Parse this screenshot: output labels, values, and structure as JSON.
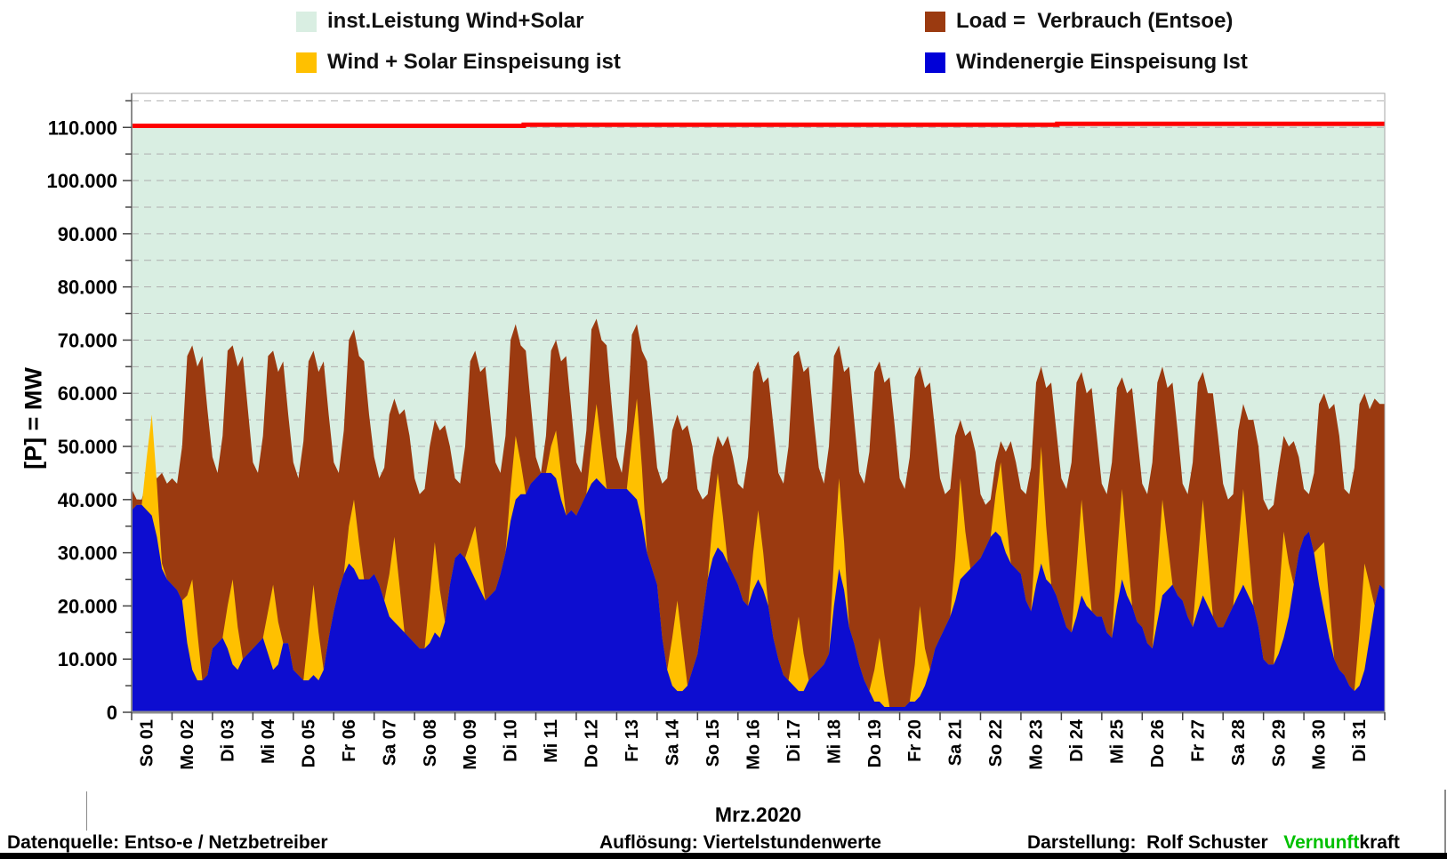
{
  "legend": {
    "items": [
      {
        "name": "capacity",
        "label": "inst.Leistung Wind+Solar",
        "color": "#d9eee2"
      },
      {
        "name": "load",
        "label": "Load =  Verbrauch (Entsoe)",
        "color": "#9b3a10"
      },
      {
        "name": "windsolar",
        "label": "Wind + Solar Einspeisung ist",
        "color": "#ffc000"
      },
      {
        "name": "wind",
        "label": "Windenergie Einspeisung Ist",
        "color": "#0000d8"
      }
    ]
  },
  "y_axis": {
    "title": "[P] = MW",
    "tick_labels": [
      "0",
      "10.000",
      "20.000",
      "30.000",
      "40.000",
      "50.000",
      "60.000",
      "70.000",
      "80.000",
      "90.000",
      "100.000",
      "110.000"
    ],
    "major_step_mw": 10000,
    "minor_step_mw": 5000
  },
  "x_axis": {
    "title": "Mrz.2020",
    "day_labels": [
      "So 01",
      "Mo 02",
      "Di 03",
      "Mi 04",
      "Do 05",
      "Fr 06",
      "Sa 07",
      "So 08",
      "Mo 09",
      "Di 10",
      "Mi 11",
      "Do 12",
      "Fr 13",
      "Sa 14",
      "So 15",
      "Mo 16",
      "Di 17",
      "Mi 18",
      "Do 19",
      "Fr 20",
      "Sa 21",
      "So 22",
      "Mo 23",
      "Di 24",
      "Mi 25",
      "Do 26",
      "Fr 27",
      "Sa 28",
      "So 29",
      "Mo 30",
      "Di 31"
    ]
  },
  "footer": {
    "left": "Datenquelle:  Entso-e  / Netzbetreiber",
    "center": "Auflösung: Viertelstundenwerte",
    "right_label": "Darstellung:  Rolf Schuster   ",
    "brand_green": "Vernunft",
    "brand_black": "kraft",
    "brand_green_color": "#00c000"
  },
  "chart_data": {
    "type": "area",
    "unit": "MW",
    "x_unit": "days of Mrz.2020, values sampled every 3 hours (original: quarter-hour)",
    "sample_hours_step": 3,
    "days": 31,
    "ylim": [
      0,
      116400
    ],
    "grid": "dashed horizontal every 5.000 MW",
    "legend_position": "top",
    "colors": {
      "capacity_fill": "#d9eee2",
      "capacity_line": "#fe0000",
      "load": "#9b3a10",
      "windsolar": "#ffc000",
      "wind": "#0d0dd0",
      "gridline": "#aeaeae",
      "axis": "#8c8c8c"
    },
    "capacity_steps_mw": [
      {
        "from_day": 0,
        "to_day": 9.7,
        "value": 110300
      },
      {
        "from_day": 9.7,
        "to_day": 22.9,
        "value": 110520
      },
      {
        "from_day": 22.9,
        "to_day": 31,
        "value": 110680
      }
    ],
    "series": [
      {
        "name": "Load =  Verbrauch (Entsoe)",
        "key": "load",
        "values_mw": [
          42000,
          40000,
          40000,
          44000,
          46000,
          44000,
          45000,
          43000,
          44000,
          43000,
          50000,
          67000,
          69000,
          65000,
          67000,
          57000,
          48000,
          45000,
          52000,
          68000,
          69000,
          65000,
          67000,
          57000,
          47000,
          45000,
          52000,
          67000,
          68000,
          64000,
          66000,
          56000,
          47000,
          44000,
          51000,
          66000,
          68000,
          64000,
          66000,
          56000,
          47000,
          45000,
          53000,
          70000,
          72000,
          67000,
          66000,
          56000,
          48000,
          44000,
          46000,
          56000,
          59000,
          56000,
          57000,
          52000,
          44000,
          41000,
          42000,
          50000,
          55000,
          53000,
          54000,
          50000,
          44000,
          43000,
          50000,
          66000,
          68000,
          64000,
          65000,
          56000,
          47000,
          45000,
          52000,
          70000,
          73000,
          69000,
          68000,
          58000,
          48000,
          45000,
          52000,
          68000,
          70000,
          66000,
          67000,
          57000,
          47000,
          45000,
          53000,
          72000,
          74000,
          70000,
          69000,
          58000,
          48000,
          45000,
          53000,
          71000,
          73000,
          68000,
          66000,
          56000,
          46000,
          43000,
          44000,
          53000,
          56000,
          53000,
          54000,
          50000,
          42000,
          40000,
          41000,
          48000,
          52000,
          50000,
          52000,
          48000,
          43000,
          42000,
          48000,
          64000,
          66000,
          62000,
          63000,
          54000,
          45000,
          43000,
          50000,
          67000,
          68000,
          64000,
          65000,
          55000,
          46000,
          43000,
          50000,
          67000,
          69000,
          64000,
          65000,
          55000,
          45000,
          43000,
          49000,
          64000,
          66000,
          62000,
          63000,
          54000,
          44000,
          42000,
          48000,
          63000,
          65000,
          61000,
          62000,
          53000,
          44000,
          41000,
          42000,
          52000,
          55000,
          52000,
          53000,
          49000,
          41000,
          39000,
          40000,
          47000,
          51000,
          49000,
          51000,
          47000,
          42000,
          41000,
          46000,
          62000,
          65000,
          61000,
          62000,
          53000,
          44000,
          42000,
          47000,
          62000,
          64000,
          60000,
          61000,
          52000,
          43000,
          41000,
          47000,
          61000,
          63000,
          60000,
          61000,
          52000,
          43000,
          41000,
          47000,
          62000,
          65000,
          61000,
          62000,
          53000,
          43000,
          41000,
          47000,
          62000,
          64000,
          60000,
          60000,
          52000,
          43000,
          40000,
          41000,
          53000,
          58000,
          55000,
          55000,
          50000,
          40000,
          38000,
          39000,
          46000,
          52000,
          50000,
          51000,
          48000,
          42000,
          41000,
          45000,
          58000,
          60000,
          57000,
          58000,
          52000,
          42000,
          41000,
          46000,
          58000,
          60000,
          57000,
          59000,
          58000,
          58000
        ]
      },
      {
        "name": "Wind + Solar Einspeisung ist",
        "key": "windsolar",
        "values_mw": [
          38000,
          39000,
          39000,
          48000,
          56000,
          43000,
          28000,
          25000,
          24000,
          23000,
          21000,
          22000,
          25000,
          15000,
          6000,
          7000,
          12000,
          13000,
          14000,
          20000,
          25000,
          16000,
          10000,
          11000,
          12000,
          13000,
          14000,
          19000,
          24000,
          17000,
          13000,
          13000,
          8000,
          7000,
          6000,
          15000,
          24000,
          15000,
          8000,
          14000,
          19000,
          23000,
          26000,
          35000,
          40000,
          32000,
          25000,
          25000,
          26000,
          24000,
          21000,
          26000,
          33000,
          24000,
          15000,
          14000,
          13000,
          12000,
          12000,
          22000,
          32000,
          23000,
          17000,
          24000,
          29000,
          30000,
          29000,
          32000,
          35000,
          28000,
          21000,
          22000,
          23000,
          26000,
          30000,
          42000,
          52000,
          47000,
          41000,
          43000,
          44000,
          45000,
          45000,
          50000,
          53000,
          45000,
          37000,
          38000,
          37000,
          39000,
          41000,
          50000,
          58000,
          50000,
          42000,
          42000,
          42000,
          42000,
          42000,
          51000,
          59000,
          46000,
          30000,
          27000,
          24000,
          14000,
          8000,
          14000,
          21000,
          13000,
          5000,
          8000,
          11000,
          18000,
          25000,
          36000,
          45000,
          37000,
          28000,
          26000,
          24000,
          21000,
          20000,
          30000,
          38000,
          30000,
          20000,
          14000,
          10000,
          7000,
          6000,
          12000,
          18000,
          11000,
          6000,
          7000,
          8000,
          9000,
          11000,
          29000,
          44000,
          32000,
          16000,
          13000,
          9000,
          6000,
          4000,
          8000,
          14000,
          7000,
          1000,
          1000,
          1000,
          1000,
          2000,
          9000,
          20000,
          12000,
          8000,
          12000,
          14000,
          16000,
          18000,
          29000,
          44000,
          34000,
          27000,
          28000,
          29000,
          31000,
          33000,
          41000,
          47000,
          37000,
          28000,
          27000,
          26000,
          21000,
          19000,
          34000,
          50000,
          35000,
          24000,
          22000,
          19000,
          16000,
          15000,
          27000,
          40000,
          29000,
          19000,
          18000,
          18000,
          15000,
          14000,
          29000,
          42000,
          31000,
          20000,
          17000,
          16000,
          13000,
          12000,
          26000,
          40000,
          32000,
          24000,
          22000,
          21000,
          18000,
          16000,
          28000,
          40000,
          29000,
          18000,
          16000,
          16000,
          18000,
          20000,
          31000,
          42000,
          31000,
          20000,
          16000,
          10000,
          9000,
          9000,
          21000,
          34000,
          28000,
          24000,
          30000,
          33000,
          34000,
          30000,
          31000,
          32000,
          21000,
          10000,
          8000,
          7000,
          5000,
          4000,
          15000,
          28000,
          24000,
          20000,
          24000,
          23000
        ]
      },
      {
        "name": "Windenergie Einspeisung Ist",
        "key": "wind",
        "values_mw": [
          38000,
          39000,
          39000,
          38000,
          37000,
          33000,
          27000,
          25000,
          24000,
          23000,
          21000,
          13000,
          8000,
          6000,
          6000,
          7000,
          12000,
          13000,
          14000,
          12000,
          9000,
          8000,
          10000,
          11000,
          12000,
          13000,
          14000,
          11000,
          8000,
          9000,
          13000,
          13000,
          8000,
          7000,
          6000,
          6000,
          7000,
          6000,
          8000,
          14000,
          19000,
          23000,
          26000,
          28000,
          27000,
          25000,
          25000,
          25000,
          26000,
          24000,
          21000,
          18000,
          17000,
          16000,
          15000,
          14000,
          13000,
          12000,
          12000,
          13000,
          15000,
          14000,
          17000,
          24000,
          29000,
          30000,
          29000,
          27000,
          25000,
          23000,
          21000,
          22000,
          23000,
          26000,
          30000,
          36000,
          40000,
          41000,
          41000,
          43000,
          44000,
          45000,
          45000,
          45000,
          44000,
          40000,
          37000,
          38000,
          37000,
          39000,
          41000,
          43000,
          44000,
          43000,
          42000,
          42000,
          42000,
          42000,
          42000,
          41000,
          40000,
          36000,
          30000,
          27000,
          24000,
          14000,
          8000,
          5000,
          4000,
          4000,
          5000,
          8000,
          11000,
          18000,
          25000,
          29000,
          31000,
          30000,
          28000,
          26000,
          24000,
          21000,
          20000,
          23000,
          25000,
          23000,
          20000,
          14000,
          10000,
          7000,
          6000,
          5000,
          4000,
          4000,
          6000,
          7000,
          8000,
          9000,
          11000,
          20000,
          27000,
          23000,
          16000,
          13000,
          9000,
          6000,
          4000,
          2000,
          2000,
          1000,
          1000,
          1000,
          1000,
          1000,
          2000,
          2000,
          3000,
          5000,
          8000,
          12000,
          14000,
          16000,
          18000,
          21000,
          25000,
          26000,
          27000,
          28000,
          29000,
          31000,
          33000,
          34000,
          33000,
          30000,
          28000,
          27000,
          26000,
          21000,
          19000,
          24000,
          28000,
          25000,
          24000,
          22000,
          19000,
          16000,
          15000,
          18000,
          22000,
          20000,
          19000,
          18000,
          18000,
          15000,
          14000,
          20000,
          25000,
          22000,
          20000,
          17000,
          16000,
          13000,
          12000,
          17000,
          22000,
          23000,
          24000,
          22000,
          21000,
          18000,
          16000,
          19000,
          22000,
          20000,
          18000,
          16000,
          16000,
          18000,
          20000,
          22000,
          24000,
          22000,
          20000,
          16000,
          10000,
          9000,
          9000,
          11000,
          14000,
          18000,
          24000,
          30000,
          33000,
          34000,
          30000,
          24000,
          19000,
          14000,
          10000,
          8000,
          7000,
          5000,
          4000,
          5000,
          8000,
          14000,
          20000,
          24000,
          23000
        ]
      }
    ]
  }
}
